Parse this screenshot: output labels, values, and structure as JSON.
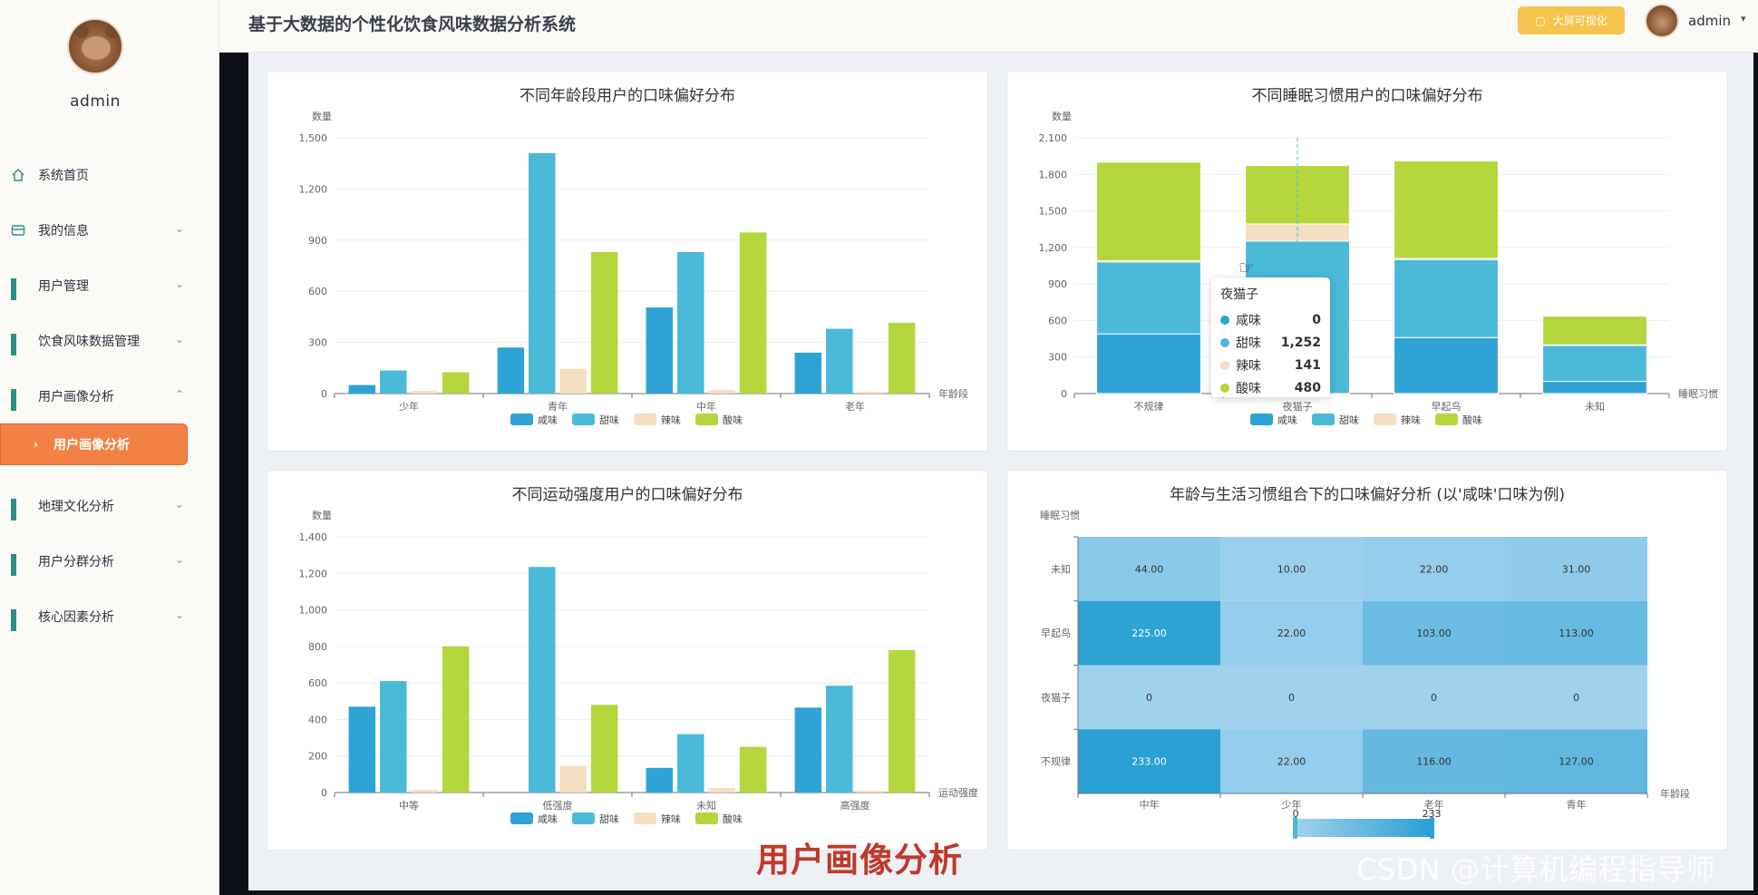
{
  "sidebar": {
    "user": "admin",
    "items": [
      {
        "label": "系统首页",
        "icon": "home-icon"
      },
      {
        "label": "我的信息",
        "icon": "card-icon"
      },
      {
        "label": "用户管理",
        "icon": "grid-icon"
      },
      {
        "label": "饮食风味数据管理",
        "icon": "grid-icon"
      },
      {
        "label": "用户画像分析",
        "icon": "grid-icon"
      },
      {
        "label": "地理文化分析",
        "icon": "grid-icon"
      },
      {
        "label": "用户分群分析",
        "icon": "grid-icon"
      },
      {
        "label": "核心因素分析",
        "icon": "grid-icon"
      }
    ],
    "active_sub": "用户画像分析"
  },
  "header": {
    "title": "基于大数据的个性化饮食风味数据分析系统",
    "big_screen_button": "大屏可视化",
    "user": "admin"
  },
  "overlay": {
    "caption": "用户画像分析",
    "watermark": "CSDN @计算机编程指导师"
  },
  "colors": {
    "salty": "#2fa3d5",
    "sweet": "#4bbad8",
    "spicy": "#f4dfc1",
    "sour": "#b5d63c",
    "accent": "#f38145"
  },
  "chart_data": [
    {
      "type": "bar",
      "title": "不同年龄段用户的口味偏好分布",
      "ylabel": "数量",
      "xlabel": "年龄段",
      "ylim": [
        0,
        1500
      ],
      "yticks": [
        "0",
        "300",
        "600",
        "900",
        "1,200",
        "1,500"
      ],
      "categories": [
        "少年",
        "青年",
        "中年",
        "老年"
      ],
      "series": [
        {
          "name": "咸味",
          "values": [
            50,
            270,
            505,
            240
          ]
        },
        {
          "name": "甜味",
          "values": [
            135,
            1410,
            830,
            380
          ]
        },
        {
          "name": "辣味",
          "values": [
            15,
            145,
            20,
            10
          ]
        },
        {
          "name": "酸味",
          "values": [
            125,
            830,
            945,
            415
          ]
        }
      ]
    },
    {
      "type": "bar",
      "stacked": true,
      "title": "不同睡眠习惯用户的口味偏好分布",
      "ylabel": "数量",
      "xlabel": "睡眠习惯",
      "ylim": [
        0,
        2100
      ],
      "yticks": [
        "0",
        "300",
        "600",
        "900",
        "1,200",
        "1,500",
        "1,800",
        "2,100"
      ],
      "categories": [
        "不规律",
        "夜猫子",
        "早起鸟",
        "未知"
      ],
      "series": [
        {
          "name": "咸味",
          "values": [
            490,
            0,
            460,
            100
          ]
        },
        {
          "name": "甜味",
          "values": [
            590,
            1252,
            640,
            295
          ]
        },
        {
          "name": "辣味",
          "values": [
            10,
            141,
            10,
            5
          ]
        },
        {
          "name": "酸味",
          "values": [
            810,
            480,
            800,
            235
          ]
        }
      ],
      "tooltip": {
        "title": "夜猫子",
        "rows": [
          {
            "name": "咸味",
            "value": "0"
          },
          {
            "name": "甜味",
            "value": "1,252"
          },
          {
            "name": "辣味",
            "value": "141"
          },
          {
            "name": "酸味",
            "value": "480"
          }
        ]
      }
    },
    {
      "type": "bar",
      "title": "不同运动强度用户的口味偏好分布",
      "ylabel": "数量",
      "xlabel": "运动强度",
      "ylim": [
        0,
        1400
      ],
      "yticks": [
        "0",
        "200",
        "400",
        "600",
        "800",
        "1,000",
        "1,200",
        "1,400"
      ],
      "categories": [
        "中等",
        "低强度",
        "未知",
        "高强度"
      ],
      "series": [
        {
          "name": "咸味",
          "values": [
            470,
            0,
            135,
            465
          ]
        },
        {
          "name": "甜味",
          "values": [
            610,
            1235,
            320,
            585
          ]
        },
        {
          "name": "辣味",
          "values": [
            15,
            145,
            25,
            10
          ]
        },
        {
          "name": "酸味",
          "values": [
            800,
            480,
            250,
            780
          ]
        }
      ]
    },
    {
      "type": "heatmap",
      "title": "年龄与生活习惯组合下的口味偏好分析 (以'咸味'口味为例)",
      "ylabel": "睡眠习惯",
      "xlabel": "年龄段",
      "x": [
        "中年",
        "少年",
        "老年",
        "青年"
      ],
      "y": [
        "未知",
        "早起鸟",
        "夜猫子",
        "不规律"
      ],
      "values": [
        [
          "44.00",
          "10.00",
          "22.00",
          "31.00"
        ],
        [
          "225.00",
          "22.00",
          "103.00",
          "113.00"
        ],
        [
          "0",
          "0",
          "0",
          "0"
        ],
        [
          "233.00",
          "22.00",
          "116.00",
          "127.00"
        ]
      ],
      "numeric": [
        [
          44,
          10,
          22,
          31
        ],
        [
          225,
          22,
          103,
          113
        ],
        [
          0,
          0,
          0,
          0
        ],
        [
          233,
          22,
          116,
          127
        ]
      ],
      "visual_map": {
        "min": "0",
        "max": "233"
      }
    }
  ]
}
